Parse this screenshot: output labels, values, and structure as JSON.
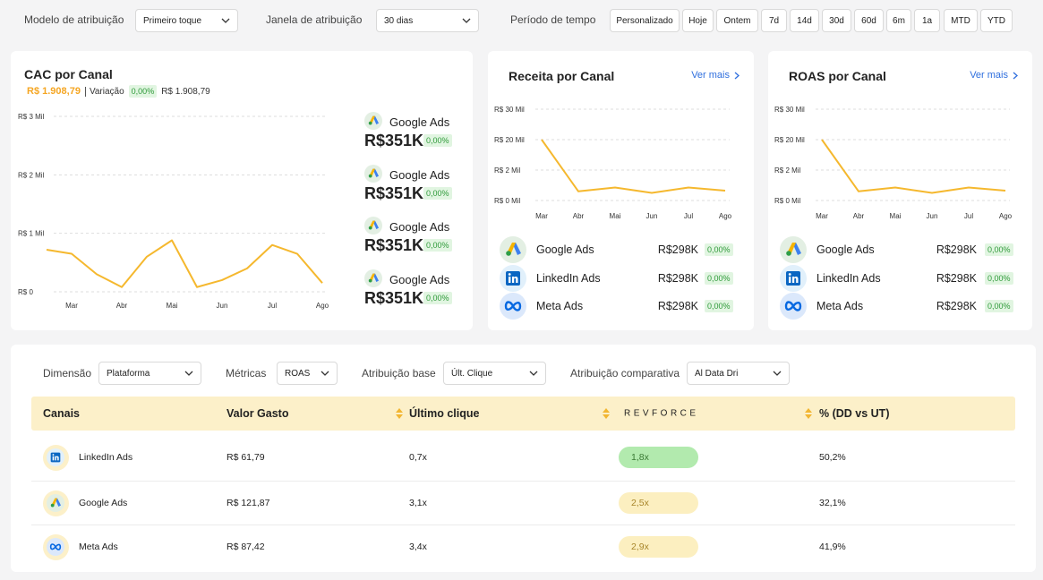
{
  "filters": {
    "attribution_model": {
      "label": "Modelo de atribuição",
      "value": "Primeiro toque"
    },
    "attribution_window": {
      "label": "Janela de atribuição",
      "value": "30 dias"
    },
    "time_period": {
      "label": "Período de tempo",
      "options": [
        "Personalizado",
        "Hoje",
        "Ontem",
        "7d",
        "14d",
        "30d",
        "60d",
        "6m",
        "1a",
        "MTD",
        "YTD"
      ]
    }
  },
  "cards": {
    "cac": {
      "title": "CAC por Canal",
      "total": "R$ 1.908,79",
      "variation_label": "Variação",
      "variation": "0,00%",
      "previous": "R$ 1.908,79",
      "channels": [
        {
          "name": "Google Ads",
          "value": "R$351K",
          "change": "0,00%"
        },
        {
          "name": "Google Ads",
          "value": "R$351K",
          "change": "0,00%"
        },
        {
          "name": "Google Ads",
          "value": "R$351K",
          "change": "0,00%"
        },
        {
          "name": "Google Ads",
          "value": "R$351K",
          "change": "0,00%"
        }
      ]
    },
    "receita": {
      "title": "Receita por Canal",
      "link": "Ver mais",
      "channels": [
        {
          "name": "Google Ads",
          "value": "R$298K",
          "change": "0,00%"
        },
        {
          "name": "LinkedIn Ads",
          "value": "R$298K",
          "change": "0,00%"
        },
        {
          "name": "Meta Ads",
          "value": "R$298K",
          "change": "0,00%"
        }
      ]
    },
    "roas": {
      "title": "ROAS por Canal",
      "link": "Ver mais",
      "channels": [
        {
          "name": "Google Ads",
          "value": "R$298K",
          "change": "0,00%"
        },
        {
          "name": "LinkedIn Ads",
          "value": "R$298K",
          "change": "0,00%"
        },
        {
          "name": "Meta Ads",
          "value": "R$298K",
          "change": "0,00%"
        }
      ]
    }
  },
  "chart_data": [
    {
      "type": "line",
      "categories": [
        null,
        "Mar",
        null,
        "Abr",
        null,
        "Mai",
        null,
        "Jun",
        null,
        "Jul",
        null,
        "Ago"
      ],
      "values": [
        0.72,
        0.65,
        0.3,
        0.08,
        0.6,
        0.88,
        0.08,
        0.2,
        0.4,
        0.8,
        0.65,
        0.15
      ],
      "color": "#f5b82e",
      "ylim": [
        0,
        3
      ],
      "yticks": [
        {
          "value": 0,
          "label": "R$ 0"
        },
        {
          "value": 1,
          "label": "R$ 1 Mil"
        },
        {
          "value": 2,
          "label": "R$ 2 Mil"
        },
        {
          "value": 3,
          "label": "R$ 3 Mil"
        }
      ],
      "grid": true
    },
    {
      "type": "line",
      "categories": [
        "Mar",
        "Abr",
        "Mai",
        "Jun",
        "Jul",
        "Ago"
      ],
      "values": [
        20,
        0.6,
        0.85,
        0.5,
        0.85,
        0.65
      ],
      "color": "#f5b82e",
      "ylim": [
        0,
        30
      ],
      "yticks": [
        {
          "value": 0,
          "label": "R$ 0 Mil"
        },
        {
          "value": 2,
          "label": "R$ 2 Mil"
        },
        {
          "value": 20,
          "label": "R$ 20 Mil"
        },
        {
          "value": 30,
          "label": "R$ 30 Mil"
        }
      ],
      "grid": true
    },
    {
      "type": "line",
      "categories": [
        "Mar",
        "Abr",
        "Mai",
        "Jun",
        "Jul",
        "Ago"
      ],
      "values": [
        20,
        0.6,
        0.85,
        0.5,
        0.85,
        0.65
      ],
      "color": "#f5b82e",
      "ylim": [
        0,
        30
      ],
      "yticks": [
        {
          "value": 0,
          "label": "R$ 0 Mil"
        },
        {
          "value": 2,
          "label": "R$ 2 Mil"
        },
        {
          "value": 20,
          "label": "R$ 20 Mil"
        },
        {
          "value": 30,
          "label": "R$ 30 Mil"
        }
      ],
      "grid": true
    }
  ],
  "table_filters": [
    {
      "label": "Dimensão",
      "value": "Plataforma"
    },
    {
      "label": "Métricas",
      "value": "ROAS"
    },
    {
      "label": "Atribuição base",
      "value": "Últ. Clique"
    },
    {
      "label": "Atribuição comparativa",
      "value": "Al Data Dri"
    }
  ],
  "table": {
    "columns": [
      "Canais",
      "Valor Gasto",
      "Último clique",
      "REVFORCE",
      "% (DD vs UT)"
    ],
    "rows": [
      [
        "LinkedIn Ads",
        "R$ 61,79",
        "0,7x",
        "1,8x",
        "50,2%"
      ],
      [
        "Google Ads",
        "R$ 121,87",
        "3,1x",
        "2,5x",
        "32,1%"
      ],
      [
        "Meta Ads",
        "R$ 87,42",
        "3,4x",
        "2,9x",
        "41,9%"
      ]
    ]
  }
}
